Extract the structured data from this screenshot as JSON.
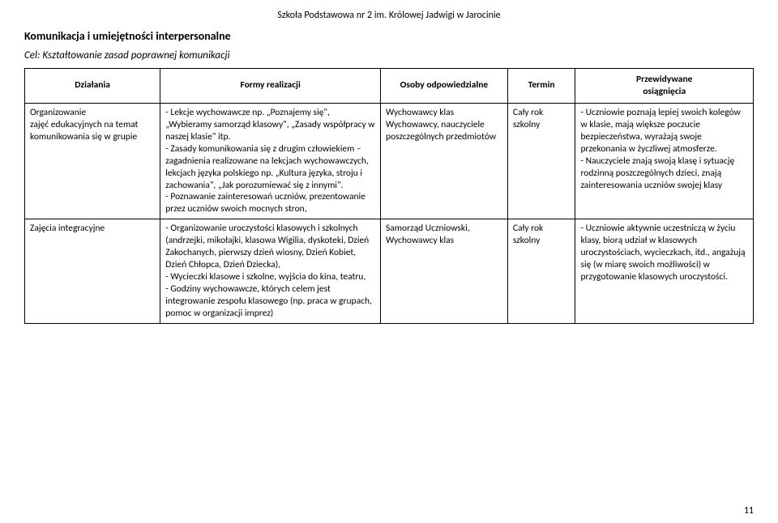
{
  "docHeader": "Szkoła Podstawowa nr 2 im. Królowej Jadwigi w Jarocinie",
  "sectionTitle": "Komunikacja i umiejętności interpersonalne",
  "sectionGoal": "Cel: Kształtowanie zasad poprawnej komunikacji",
  "headers": {
    "dzialania": "Działania",
    "formy": "Formy realizacji",
    "osoby": "Osoby odpowiedzialne",
    "termin": "Termin",
    "przewidywane": "Przewidywane\nosiągnięcia"
  },
  "rows": [
    {
      "dzialania": "Organizowanie\nzajęć edukacyjnych na temat\nkomunikowania się w grupie",
      "formy": "- Lekcje wychowawcze np. „Poznajemy się\", „Wybieramy samorząd klasowy\", „Zasady współpracy w naszej klasie\" itp.\n- Zasady komunikowania się z drugim człowiekiem – zagadnienia realizowane na lekcjach wychowawczych, lekcjach języka polskiego np. „Kultura języka, stroju i zachowania\", „Jak porozumiewać się z innymi\".\n- Poznawanie zainteresowań uczniów, prezentowanie przez uczniów swoich mocnych stron,",
      "osoby": "Wychowawcy klas\nWychowawcy, nauczyciele poszczególnych przedmiotów",
      "termin": "Cały rok\nszkolny",
      "przewidywane": "- Uczniowie poznają lepiej swoich kolegów w klasie, mają większe poczucie bezpieczeństwa, wyrażają swoje przekonania w życzliwej atmosferze.\n- Nauczyciele znają swoją klasę i sytuację rodzinną poszczególnych dzieci, znają zainteresowania uczniów swojej klasy"
    },
    {
      "dzialania": "Zajęcia integracyjne",
      "formy": "- Organizowanie uroczystości klasowych i szkolnych (andrzejki, mikołajki, klasowa Wigilia, dyskoteki, Dzień Zakochanych, pierwszy dzień wiosny, Dzień Kobiet, Dzień Chłopca, Dzień Dziecka),\n- Wycieczki klasowe i szkolne, wyjścia do kina, teatru,\n- Godziny wychowawcze, których celem jest integrowanie zespołu klasowego (np. praca w grupach, pomoc w organizacji imprez)",
      "osoby": "Samorząd Uczniowski,\nWychowawcy klas",
      "termin": "Cały rok\nszkolny",
      "przewidywane": "- Uczniowie aktywnie uczestniczą w życiu klasy, biorą udział w klasowych uroczystościach, wycieczkach, itd., angażują się (w miarę swoich możliwości) w przygotowanie klasowych uroczystości."
    }
  ],
  "pageNumber": "11"
}
